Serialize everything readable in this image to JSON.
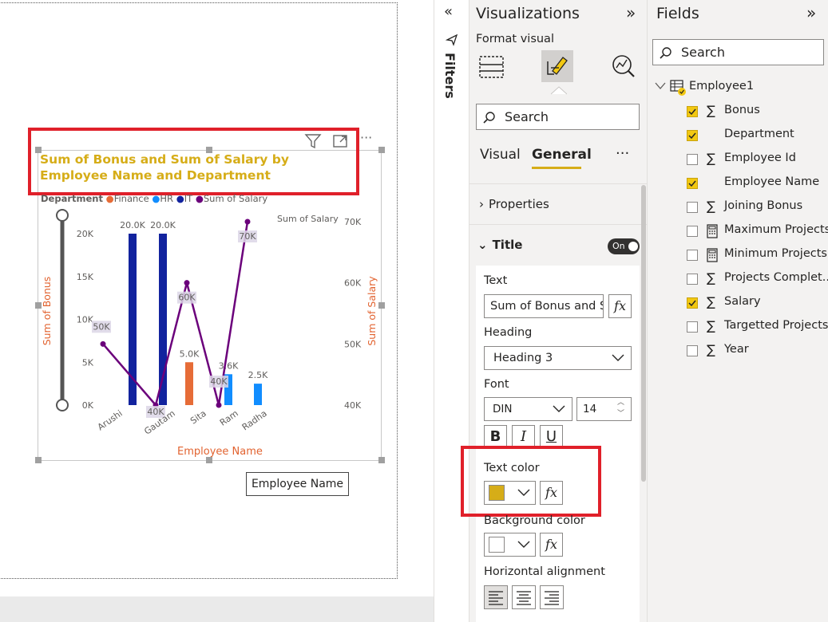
{
  "chart": {
    "title": "Sum of Bonus and Sum of Salary by Employee Name and Department",
    "legend_title": "Department",
    "legend": [
      {
        "name": "Finance",
        "color": "#e66c37"
      },
      {
        "name": "HR",
        "color": "#118dff"
      },
      {
        "name": "IT",
        "color": "#12239e"
      },
      {
        "name": "Sum of Salary",
        "color": "#6b007b"
      }
    ],
    "x_title": "Employee Name",
    "y_title": "Sum of Bonus",
    "y2_title": "Sum of Salary",
    "y2_inline_label": "Sum of Salary",
    "y_ticks": [
      "0K",
      "5K",
      "10K",
      "15K",
      "20K"
    ],
    "y2_ticks": [
      "40K",
      "50K",
      "60K",
      "70K"
    ],
    "tooltip": "Employee Name"
  },
  "chart_data": {
    "type": "bar",
    "categories": [
      "Arushi",
      "Gautam",
      "Sita",
      "Ram",
      "Radha"
    ],
    "series": [
      {
        "name": "IT",
        "type": "bar",
        "values": [
          20000,
          20000,
          null,
          null,
          null
        ],
        "labels": [
          "20.0K",
          "20.0K",
          "",
          "",
          ""
        ]
      },
      {
        "name": "Finance",
        "type": "bar",
        "values": [
          null,
          null,
          5000,
          null,
          null
        ],
        "labels": [
          "",
          "",
          "5.0K",
          "",
          ""
        ]
      },
      {
        "name": "HR",
        "type": "bar",
        "values": [
          null,
          null,
          null,
          3600,
          2500
        ],
        "labels": [
          "",
          "",
          "",
          "3.6K",
          "2.5K"
        ]
      },
      {
        "name": "Sum of Salary",
        "type": "line",
        "axis": "secondary",
        "values": [
          50000,
          40000,
          60000,
          40000,
          70000
        ],
        "labels": [
          "50K",
          "40K",
          "60K",
          "40K",
          "70K"
        ]
      }
    ],
    "ylim": [
      0,
      20000
    ],
    "y2lim": [
      40000,
      70000
    ]
  },
  "filters": {
    "label": "Filters"
  },
  "viz": {
    "title": "Visualizations",
    "format_visual": "Format visual",
    "search_placeholder": "Search",
    "tab_visual": "Visual",
    "tab_general": "General",
    "properties": "Properties",
    "title_section": "Title",
    "toggle": "On",
    "text_label": "Text",
    "text_value": "Sum of Bonus and S",
    "heading_label": "Heading",
    "heading_value": "Heading 3",
    "font_label": "Font",
    "font_value": "DIN",
    "font_size": "14",
    "text_color_label": "Text color",
    "text_color": "#d6ad18",
    "bg_color_label": "Background color",
    "halign_label": "Horizontal alignment",
    "fx": "fx"
  },
  "fields": {
    "title": "Fields",
    "search_placeholder": "Search",
    "table": "Employee1",
    "items": [
      {
        "label": "Bonus",
        "checked": true,
        "icon": "sigma"
      },
      {
        "label": "Department",
        "checked": true,
        "icon": ""
      },
      {
        "label": "Employee Id",
        "checked": false,
        "icon": "sigma"
      },
      {
        "label": "Employee Name",
        "checked": true,
        "icon": ""
      },
      {
        "label": "Joining Bonus",
        "checked": false,
        "icon": "sigma"
      },
      {
        "label": "Maximum Projects",
        "checked": false,
        "icon": "calculator"
      },
      {
        "label": "Minimum Projects",
        "checked": false,
        "icon": "calculator"
      },
      {
        "label": "Projects Complet...",
        "checked": false,
        "icon": "sigma"
      },
      {
        "label": "Salary",
        "checked": true,
        "icon": "sigma"
      },
      {
        "label": "Targetted Projects",
        "checked": false,
        "icon": "sigma"
      },
      {
        "label": "Year",
        "checked": false,
        "icon": "sigma"
      }
    ]
  }
}
